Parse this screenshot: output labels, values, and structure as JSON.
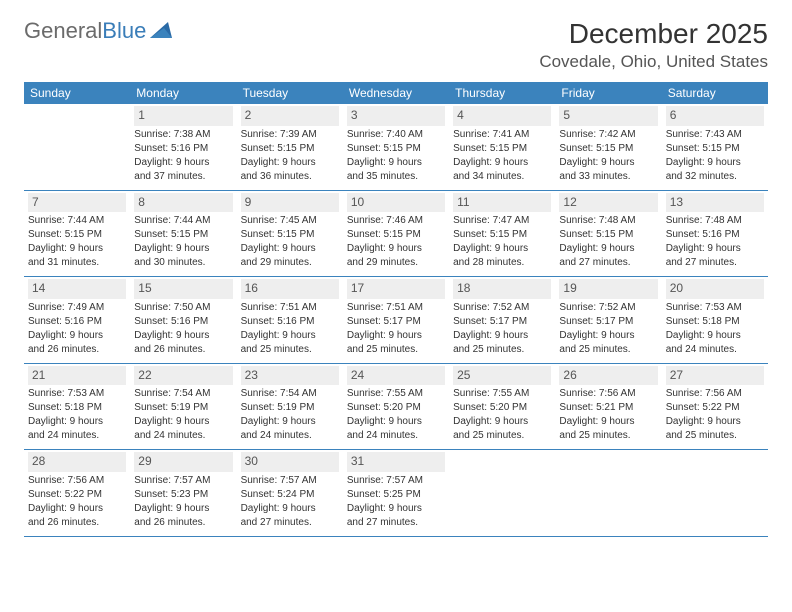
{
  "logo": {
    "word1": "General",
    "word2": "Blue"
  },
  "title": "December 2025",
  "location": "Covedale, Ohio, United States",
  "colors": {
    "header_bg": "#3b83bd",
    "header_text": "#ffffff",
    "date_bg": "#eeeeee",
    "row_border": "#3b83bd",
    "logo_gray": "#6b6b6b",
    "logo_blue": "#3a7db8"
  },
  "dow": [
    "Sunday",
    "Monday",
    "Tuesday",
    "Wednesday",
    "Thursday",
    "Friday",
    "Saturday"
  ],
  "weeks": [
    [
      null,
      {
        "n": "1",
        "sr": "Sunrise: 7:38 AM",
        "ss": "Sunset: 5:16 PM",
        "d1": "Daylight: 9 hours",
        "d2": "and 37 minutes."
      },
      {
        "n": "2",
        "sr": "Sunrise: 7:39 AM",
        "ss": "Sunset: 5:15 PM",
        "d1": "Daylight: 9 hours",
        "d2": "and 36 minutes."
      },
      {
        "n": "3",
        "sr": "Sunrise: 7:40 AM",
        "ss": "Sunset: 5:15 PM",
        "d1": "Daylight: 9 hours",
        "d2": "and 35 minutes."
      },
      {
        "n": "4",
        "sr": "Sunrise: 7:41 AM",
        "ss": "Sunset: 5:15 PM",
        "d1": "Daylight: 9 hours",
        "d2": "and 34 minutes."
      },
      {
        "n": "5",
        "sr": "Sunrise: 7:42 AM",
        "ss": "Sunset: 5:15 PM",
        "d1": "Daylight: 9 hours",
        "d2": "and 33 minutes."
      },
      {
        "n": "6",
        "sr": "Sunrise: 7:43 AM",
        "ss": "Sunset: 5:15 PM",
        "d1": "Daylight: 9 hours",
        "d2": "and 32 minutes."
      }
    ],
    [
      {
        "n": "7",
        "sr": "Sunrise: 7:44 AM",
        "ss": "Sunset: 5:15 PM",
        "d1": "Daylight: 9 hours",
        "d2": "and 31 minutes."
      },
      {
        "n": "8",
        "sr": "Sunrise: 7:44 AM",
        "ss": "Sunset: 5:15 PM",
        "d1": "Daylight: 9 hours",
        "d2": "and 30 minutes."
      },
      {
        "n": "9",
        "sr": "Sunrise: 7:45 AM",
        "ss": "Sunset: 5:15 PM",
        "d1": "Daylight: 9 hours",
        "d2": "and 29 minutes."
      },
      {
        "n": "10",
        "sr": "Sunrise: 7:46 AM",
        "ss": "Sunset: 5:15 PM",
        "d1": "Daylight: 9 hours",
        "d2": "and 29 minutes."
      },
      {
        "n": "11",
        "sr": "Sunrise: 7:47 AM",
        "ss": "Sunset: 5:15 PM",
        "d1": "Daylight: 9 hours",
        "d2": "and 28 minutes."
      },
      {
        "n": "12",
        "sr": "Sunrise: 7:48 AM",
        "ss": "Sunset: 5:15 PM",
        "d1": "Daylight: 9 hours",
        "d2": "and 27 minutes."
      },
      {
        "n": "13",
        "sr": "Sunrise: 7:48 AM",
        "ss": "Sunset: 5:16 PM",
        "d1": "Daylight: 9 hours",
        "d2": "and 27 minutes."
      }
    ],
    [
      {
        "n": "14",
        "sr": "Sunrise: 7:49 AM",
        "ss": "Sunset: 5:16 PM",
        "d1": "Daylight: 9 hours",
        "d2": "and 26 minutes."
      },
      {
        "n": "15",
        "sr": "Sunrise: 7:50 AM",
        "ss": "Sunset: 5:16 PM",
        "d1": "Daylight: 9 hours",
        "d2": "and 26 minutes."
      },
      {
        "n": "16",
        "sr": "Sunrise: 7:51 AM",
        "ss": "Sunset: 5:16 PM",
        "d1": "Daylight: 9 hours",
        "d2": "and 25 minutes."
      },
      {
        "n": "17",
        "sr": "Sunrise: 7:51 AM",
        "ss": "Sunset: 5:17 PM",
        "d1": "Daylight: 9 hours",
        "d2": "and 25 minutes."
      },
      {
        "n": "18",
        "sr": "Sunrise: 7:52 AM",
        "ss": "Sunset: 5:17 PM",
        "d1": "Daylight: 9 hours",
        "d2": "and 25 minutes."
      },
      {
        "n": "19",
        "sr": "Sunrise: 7:52 AM",
        "ss": "Sunset: 5:17 PM",
        "d1": "Daylight: 9 hours",
        "d2": "and 25 minutes."
      },
      {
        "n": "20",
        "sr": "Sunrise: 7:53 AM",
        "ss": "Sunset: 5:18 PM",
        "d1": "Daylight: 9 hours",
        "d2": "and 24 minutes."
      }
    ],
    [
      {
        "n": "21",
        "sr": "Sunrise: 7:53 AM",
        "ss": "Sunset: 5:18 PM",
        "d1": "Daylight: 9 hours",
        "d2": "and 24 minutes."
      },
      {
        "n": "22",
        "sr": "Sunrise: 7:54 AM",
        "ss": "Sunset: 5:19 PM",
        "d1": "Daylight: 9 hours",
        "d2": "and 24 minutes."
      },
      {
        "n": "23",
        "sr": "Sunrise: 7:54 AM",
        "ss": "Sunset: 5:19 PM",
        "d1": "Daylight: 9 hours",
        "d2": "and 24 minutes."
      },
      {
        "n": "24",
        "sr": "Sunrise: 7:55 AM",
        "ss": "Sunset: 5:20 PM",
        "d1": "Daylight: 9 hours",
        "d2": "and 24 minutes."
      },
      {
        "n": "25",
        "sr": "Sunrise: 7:55 AM",
        "ss": "Sunset: 5:20 PM",
        "d1": "Daylight: 9 hours",
        "d2": "and 25 minutes."
      },
      {
        "n": "26",
        "sr": "Sunrise: 7:56 AM",
        "ss": "Sunset: 5:21 PM",
        "d1": "Daylight: 9 hours",
        "d2": "and 25 minutes."
      },
      {
        "n": "27",
        "sr": "Sunrise: 7:56 AM",
        "ss": "Sunset: 5:22 PM",
        "d1": "Daylight: 9 hours",
        "d2": "and 25 minutes."
      }
    ],
    [
      {
        "n": "28",
        "sr": "Sunrise: 7:56 AM",
        "ss": "Sunset: 5:22 PM",
        "d1": "Daylight: 9 hours",
        "d2": "and 26 minutes."
      },
      {
        "n": "29",
        "sr": "Sunrise: 7:57 AM",
        "ss": "Sunset: 5:23 PM",
        "d1": "Daylight: 9 hours",
        "d2": "and 26 minutes."
      },
      {
        "n": "30",
        "sr": "Sunrise: 7:57 AM",
        "ss": "Sunset: 5:24 PM",
        "d1": "Daylight: 9 hours",
        "d2": "and 27 minutes."
      },
      {
        "n": "31",
        "sr": "Sunrise: 7:57 AM",
        "ss": "Sunset: 5:25 PM",
        "d1": "Daylight: 9 hours",
        "d2": "and 27 minutes."
      },
      null,
      null,
      null
    ]
  ]
}
